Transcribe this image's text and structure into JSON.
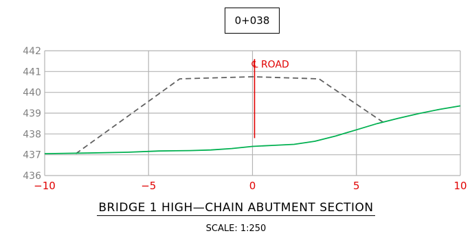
{
  "station_label": "0+038",
  "chart_data": {
    "type": "line",
    "title": "BRIDGE 1 HIGH—CHAIN ABUTMENT SECTION",
    "subtitle": "SCALE: 1:250",
    "xlabel": "",
    "ylabel": "",
    "xlim": [
      -10,
      10
    ],
    "ylim": [
      436,
      442
    ],
    "x_ticks": [
      -10,
      -5,
      0,
      5,
      10
    ],
    "x_tick_labels": [
      "−10",
      "−5",
      "0",
      "5",
      "10"
    ],
    "y_ticks": [
      436,
      437,
      438,
      439,
      440,
      441,
      442
    ],
    "y_tick_labels": [
      "436",
      "437",
      "438",
      "439",
      "440",
      "441",
      "442"
    ],
    "grid": true,
    "colors": {
      "grid": "#b4b4b4",
      "axis_label": "#808080",
      "x_tick_label": "#e00000",
      "ground": "#00b050",
      "design": "#606060",
      "centerline": "#e00000"
    },
    "annotations": [
      {
        "text": "℄ ROAD",
        "x": 0,
        "y": 441.35
      }
    ],
    "centerline": {
      "x": 0,
      "y_top": 441.6,
      "y_bottom": 437.8
    },
    "series": [
      {
        "style": "dashed",
        "x": [
          -8.5,
          -3.5,
          0,
          3.2,
          6.3
        ],
        "y": [
          437.05,
          440.65,
          440.75,
          440.65,
          438.55
        ]
      },
      {
        "style": "solid",
        "x": [
          -10,
          -8,
          -6,
          -4.5,
          -3,
          -2,
          -1,
          0,
          1,
          2,
          3,
          4,
          5,
          6,
          7,
          8,
          9,
          10
        ],
        "y": [
          437.05,
          437.08,
          437.12,
          437.18,
          437.2,
          437.23,
          437.3,
          437.4,
          437.45,
          437.5,
          437.65,
          437.9,
          438.2,
          438.5,
          438.75,
          438.98,
          439.18,
          439.35
        ]
      }
    ]
  }
}
